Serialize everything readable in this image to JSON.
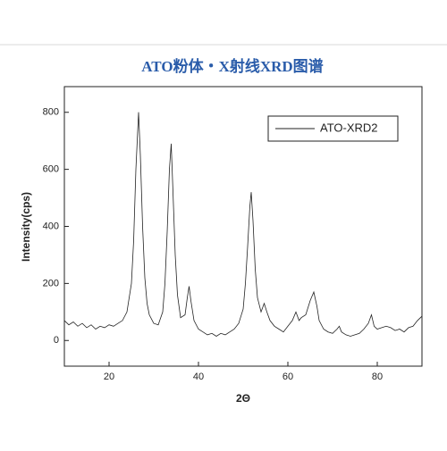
{
  "chart_data": {
    "type": "line",
    "title": "ATO粉体・X射线XRD图谱",
    "x_label": "2Θ",
    "y_label": "Intensity(cps)",
    "x": [
      10,
      11,
      12,
      13,
      14,
      15,
      16,
      17,
      18,
      19,
      20,
      21,
      22,
      23,
      24,
      25,
      25.5,
      26,
      26.6,
      27,
      27.5,
      28,
      28.5,
      29,
      30,
      31,
      32,
      32.5,
      33,
      33.5,
      33.9,
      34.3,
      34.8,
      35.3,
      36,
      37,
      37.5,
      37.9,
      38.3,
      39,
      40,
      41,
      42,
      43,
      44,
      45,
      46,
      47,
      48,
      49,
      50,
      50.5,
      51,
      51.5,
      51.8,
      52.2,
      52.7,
      53.2,
      54,
      54.7,
      55.3,
      56,
      57,
      58,
      59,
      60,
      61,
      61.8,
      62.5,
      63,
      64,
      65,
      65.8,
      66.5,
      67,
      68,
      69,
      70,
      71,
      71.5,
      72,
      73,
      74,
      75,
      76,
      77,
      78,
      78.7,
      79.3,
      80,
      81,
      82,
      83,
      84,
      85,
      86,
      87,
      88,
      89,
      90
    ],
    "series": [
      {
        "name": "ATO-XRD2",
        "color": "#222222",
        "values": [
          70,
          55,
          65,
          50,
          60,
          45,
          55,
          40,
          50,
          45,
          55,
          50,
          60,
          70,
          100,
          200,
          350,
          600,
          800,
          650,
          400,
          220,
          130,
          90,
          60,
          55,
          100,
          200,
          380,
          600,
          690,
          520,
          300,
          160,
          80,
          90,
          150,
          190,
          140,
          70,
          40,
          30,
          20,
          25,
          15,
          25,
          20,
          30,
          40,
          60,
          110,
          200,
          330,
          470,
          520,
          420,
          250,
          150,
          100,
          130,
          100,
          70,
          50,
          40,
          30,
          50,
          70,
          100,
          70,
          80,
          90,
          140,
          170,
          120,
          70,
          40,
          30,
          25,
          40,
          50,
          30,
          20,
          15,
          20,
          25,
          40,
          60,
          90,
          50,
          40,
          45,
          50,
          45,
          35,
          40,
          30,
          45,
          50,
          70,
          85
        ]
      }
    ],
    "xlim": [
      10,
      90
    ],
    "ylim": [
      -90,
      890
    ],
    "xticks": [
      20,
      40,
      60,
      80
    ],
    "yticks": [
      0,
      200,
      400,
      600,
      800
    ],
    "legend": "upper right"
  }
}
